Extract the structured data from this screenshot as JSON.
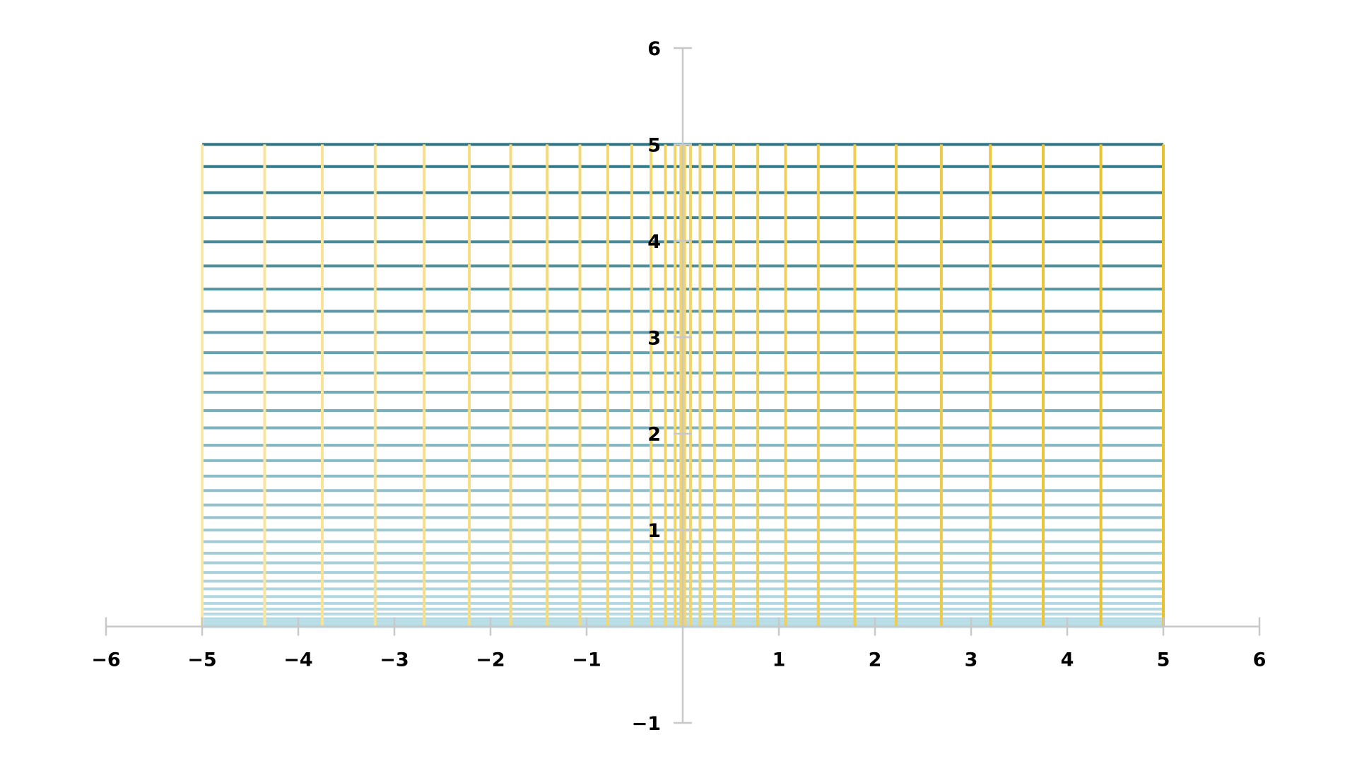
{
  "chart_data": {
    "type": "line",
    "title": "",
    "xlabel": "",
    "ylabel": "",
    "xlim": [
      -6,
      6
    ],
    "ylim": [
      -1,
      6
    ],
    "x_ticks": [
      -6,
      -5,
      -4,
      -3,
      -2,
      -1,
      1,
      2,
      3,
      4,
      5,
      6
    ],
    "y_ticks": [
      -1,
      1,
      2,
      3,
      4,
      5,
      6
    ],
    "grid": false,
    "legend": "none",
    "colors": {
      "vertical_light": "#fbe8a6",
      "vertical_dark": "#e9c12a",
      "horizontal_light": "#b9dde6",
      "horizontal_dark": "#2a7385",
      "axis": "#c8c8c8",
      "tick_label": "#000000"
    },
    "vertical_segments": {
      "y_range": [
        0,
        5
      ],
      "x": [
        -5,
        -4.35,
        -3.75,
        -3.2,
        -2.69,
        -2.22,
        -1.79,
        -1.41,
        -1.07,
        -0.78,
        -0.53,
        -0.33,
        -0.18,
        -0.08,
        -0.02,
        0,
        0.02,
        0.08,
        0.18,
        0.33,
        0.53,
        0.78,
        1.07,
        1.41,
        1.79,
        2.22,
        2.69,
        3.2,
        3.75,
        4.35,
        5
      ]
    },
    "horizontal_segments": {
      "x_range": [
        -5,
        5
      ],
      "y": [
        0,
        0.02,
        0.05,
        0.08,
        0.13,
        0.18,
        0.24,
        0.31,
        0.39,
        0.47,
        0.56,
        0.66,
        0.76,
        0.88,
        1.0,
        1.13,
        1.26,
        1.41,
        1.56,
        1.72,
        1.88,
        2.06,
        2.24,
        2.43,
        2.63,
        2.84,
        3.05,
        3.27,
        3.5,
        3.74,
        3.99,
        4.24,
        4.5,
        4.77,
        5.0
      ]
    }
  }
}
